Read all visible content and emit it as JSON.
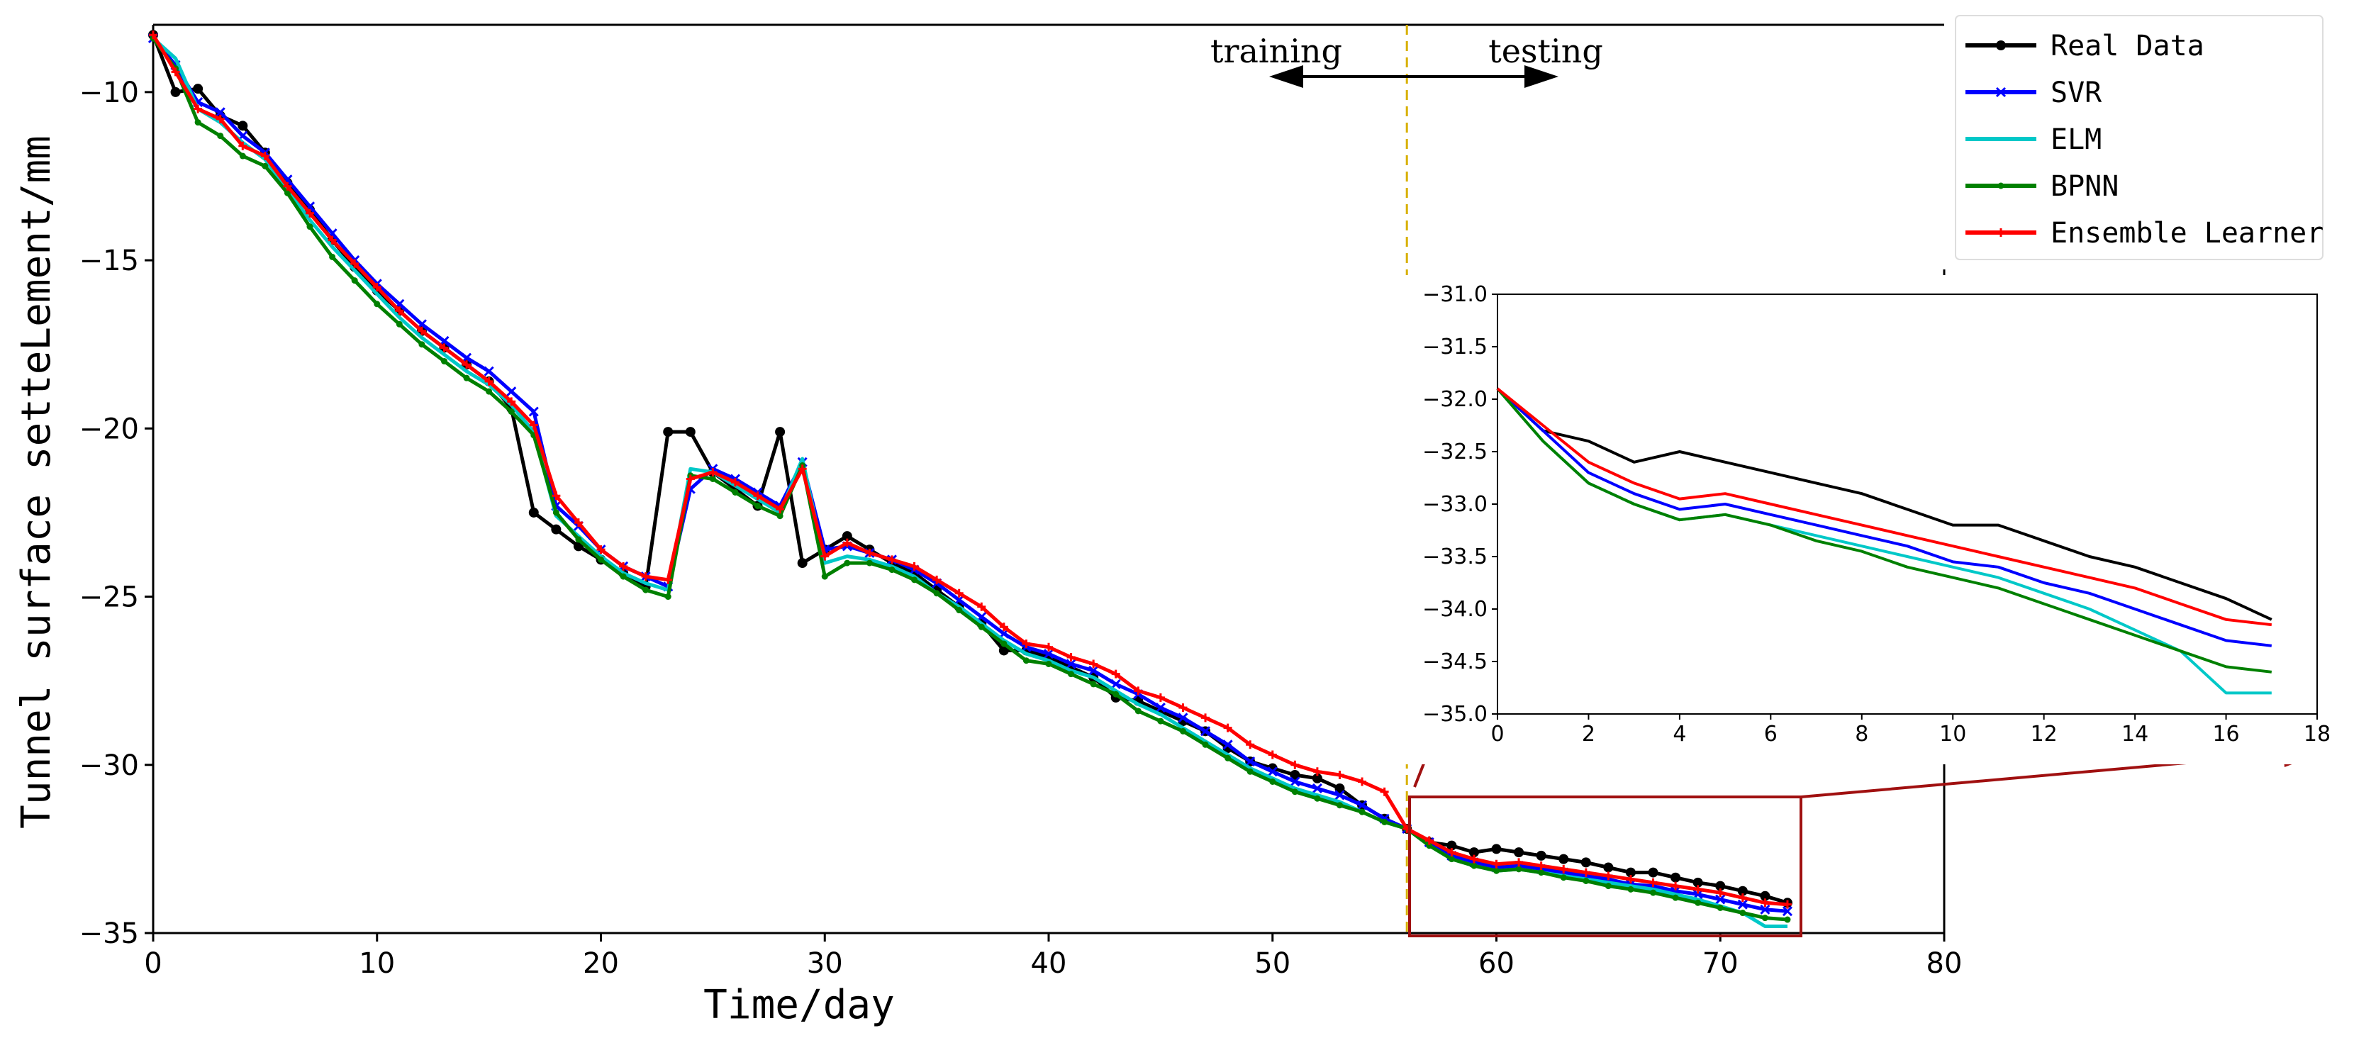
{
  "chart_data": {
    "type": "line",
    "title": "",
    "xlabel": "Time/day",
    "ylabel": "Tunnel surface setteLement/mm",
    "xlim": [
      0,
      80
    ],
    "ylim": [
      -35,
      -8
    ],
    "xticks": [
      0,
      10,
      20,
      30,
      40,
      50,
      60,
      70,
      80
    ],
    "yticks": [
      -10,
      -15,
      -20,
      -25,
      -30,
      -35
    ],
    "split_day": 56,
    "annotations": {
      "training": "training",
      "testing": "testing"
    },
    "legend_position": "top-right",
    "colors": {
      "Real Data": "#000000",
      "SVR": "#0000ff",
      "ELM": "#00c8c8",
      "BPNN": "#008000",
      "Ensemble Learner": "#ff0000",
      "highlight": "#a01010",
      "split_line": "#d8b000"
    },
    "x": [
      0,
      1,
      2,
      3,
      4,
      5,
      6,
      7,
      8,
      9,
      10,
      11,
      12,
      13,
      14,
      15,
      16,
      17,
      18,
      19,
      20,
      21,
      22,
      23,
      24,
      25,
      26,
      27,
      28,
      29,
      30,
      31,
      32,
      33,
      34,
      35,
      36,
      37,
      38,
      39,
      40,
      41,
      42,
      43,
      44,
      45,
      46,
      47,
      48,
      49,
      50,
      51,
      52,
      53,
      54,
      55,
      56,
      57,
      58,
      59,
      60,
      61,
      62,
      63,
      64,
      65,
      66,
      67,
      68,
      69,
      70,
      71,
      72,
      73
    ],
    "series": [
      {
        "name": "Real Data",
        "marker": "circle",
        "values": [
          -8.3,
          -10.0,
          -9.9,
          -10.7,
          -11.0,
          -11.8,
          -12.7,
          -13.5,
          -14.4,
          -15.2,
          -15.9,
          -16.5,
          -17.1,
          -17.6,
          -18.1,
          -18.6,
          -19.4,
          -22.5,
          -23.0,
          -23.5,
          -23.9,
          -24.3,
          -24.7,
          -20.1,
          -20.1,
          -21.3,
          -21.8,
          -22.3,
          -20.1,
          -24.0,
          -23.6,
          -23.2,
          -23.6,
          -24.0,
          -24.3,
          -24.8,
          -25.3,
          -25.8,
          -26.6,
          -26.6,
          -26.8,
          -27.1,
          -27.4,
          -28.0,
          -28.1,
          -28.4,
          -28.7,
          -29.0,
          -29.5,
          -29.9,
          -30.1,
          -30.3,
          -30.4,
          -30.7,
          -31.2,
          -31.6,
          -31.9,
          -32.3,
          -32.4,
          -32.6,
          -32.5,
          -32.6,
          -32.7,
          -32.8,
          -32.9,
          -33.05,
          -33.2,
          -33.2,
          -33.35,
          -33.5,
          -33.6,
          -33.75,
          -33.9,
          -34.1
        ]
      },
      {
        "name": "SVR",
        "marker": "x",
        "values": [
          -8.4,
          -9.2,
          -10.3,
          -10.6,
          -11.3,
          -11.8,
          -12.6,
          -13.4,
          -14.2,
          -15.0,
          -15.7,
          -16.3,
          -16.9,
          -17.4,
          -17.9,
          -18.3,
          -18.9,
          -19.5,
          -22.3,
          -22.9,
          -23.6,
          -24.1,
          -24.4,
          -24.7,
          -21.8,
          -21.2,
          -21.5,
          -21.9,
          -22.3,
          -21.0,
          -23.6,
          -23.5,
          -23.7,
          -23.9,
          -24.2,
          -24.6,
          -25.1,
          -25.6,
          -26.1,
          -26.5,
          -26.7,
          -27.0,
          -27.2,
          -27.6,
          -27.9,
          -28.3,
          -28.6,
          -29.0,
          -29.4,
          -29.9,
          -30.2,
          -30.5,
          -30.7,
          -30.9,
          -31.2,
          -31.6,
          -31.9,
          -32.3,
          -32.7,
          -32.9,
          -33.05,
          -33.0,
          -33.1,
          -33.2,
          -33.3,
          -33.4,
          -33.55,
          -33.6,
          -33.75,
          -33.85,
          -34.0,
          -34.15,
          -34.3,
          -34.35
        ]
      },
      {
        "name": "ELM",
        "marker": "none",
        "values": [
          -8.4,
          -9.0,
          -10.5,
          -10.9,
          -11.5,
          -12.0,
          -12.9,
          -13.8,
          -14.6,
          -15.3,
          -16.0,
          -16.7,
          -17.3,
          -17.8,
          -18.3,
          -18.7,
          -19.3,
          -20.1,
          -22.6,
          -23.2,
          -23.8,
          -24.3,
          -24.6,
          -24.8,
          -21.2,
          -21.3,
          -21.7,
          -22.1,
          -22.5,
          -20.9,
          -24.0,
          -23.8,
          -23.9,
          -24.1,
          -24.4,
          -24.9,
          -25.3,
          -25.8,
          -26.3,
          -26.7,
          -26.9,
          -27.2,
          -27.4,
          -27.8,
          -28.2,
          -28.5,
          -28.9,
          -29.3,
          -29.7,
          -30.1,
          -30.4,
          -30.7,
          -30.9,
          -31.1,
          -31.4,
          -31.7,
          -31.9,
          -32.4,
          -32.8,
          -33.0,
          -33.15,
          -33.1,
          -33.2,
          -33.3,
          -33.4,
          -33.5,
          -33.6,
          -33.7,
          -33.85,
          -34.0,
          -34.2,
          -34.4,
          -34.8,
          -34.8
        ]
      },
      {
        "name": "BPNN",
        "marker": "dot",
        "values": [
          -8.4,
          -9.3,
          -10.9,
          -11.3,
          -11.9,
          -12.2,
          -13.0,
          -14.0,
          -14.9,
          -15.6,
          -16.3,
          -16.9,
          -17.5,
          -18.0,
          -18.5,
          -18.9,
          -19.5,
          -20.2,
          -22.5,
          -23.3,
          -23.9,
          -24.4,
          -24.8,
          -25.0,
          -21.4,
          -21.5,
          -21.9,
          -22.3,
          -22.6,
          -21.1,
          -24.4,
          -24.0,
          -24.0,
          -24.2,
          -24.5,
          -24.9,
          -25.4,
          -25.9,
          -26.4,
          -26.9,
          -27.0,
          -27.3,
          -27.6,
          -27.9,
          -28.4,
          -28.7,
          -29.0,
          -29.4,
          -29.8,
          -30.2,
          -30.5,
          -30.8,
          -31.0,
          -31.2,
          -31.4,
          -31.7,
          -31.9,
          -32.4,
          -32.8,
          -33.0,
          -33.15,
          -33.1,
          -33.2,
          -33.35,
          -33.45,
          -33.6,
          -33.7,
          -33.8,
          -33.95,
          -34.1,
          -34.25,
          -34.4,
          -34.55,
          -34.6
        ]
      },
      {
        "name": "Ensemble Learner",
        "marker": "plus",
        "values": [
          -8.3,
          -9.4,
          -10.5,
          -10.8,
          -11.6,
          -11.9,
          -12.8,
          -13.6,
          -14.4,
          -15.1,
          -15.8,
          -16.5,
          -17.1,
          -17.6,
          -18.1,
          -18.6,
          -19.2,
          -19.9,
          -22.0,
          -22.8,
          -23.6,
          -24.1,
          -24.4,
          -24.5,
          -21.5,
          -21.3,
          -21.6,
          -22.0,
          -22.4,
          -21.2,
          -23.8,
          -23.4,
          -23.7,
          -23.9,
          -24.1,
          -24.5,
          -24.9,
          -25.3,
          -25.9,
          -26.4,
          -26.5,
          -26.8,
          -27.0,
          -27.3,
          -27.8,
          -28.0,
          -28.3,
          -28.6,
          -28.9,
          -29.4,
          -29.7,
          -30.0,
          -30.2,
          -30.3,
          -30.5,
          -30.8,
          -31.9,
          -32.25,
          -32.6,
          -32.8,
          -32.95,
          -32.9,
          -33.0,
          -33.1,
          -33.2,
          -33.3,
          -33.4,
          -33.5,
          -33.6,
          -33.7,
          -33.8,
          -33.95,
          -34.1,
          -34.15
        ]
      }
    ],
    "inset": {
      "xlim": [
        0,
        18
      ],
      "ylim": [
        -35.0,
        -31.0
      ],
      "xticks": [
        "0",
        "2",
        "4",
        "6",
        "8",
        "10",
        "12",
        "14",
        "16",
        "18"
      ],
      "yticks": [
        "-31.0",
        "-31.5",
        "-32.0",
        "-32.5",
        "-33.0",
        "-33.5",
        "-34.0",
        "-34.5",
        "-35.0"
      ],
      "x_start_day": 56,
      "x_end_day": 73
    }
  }
}
